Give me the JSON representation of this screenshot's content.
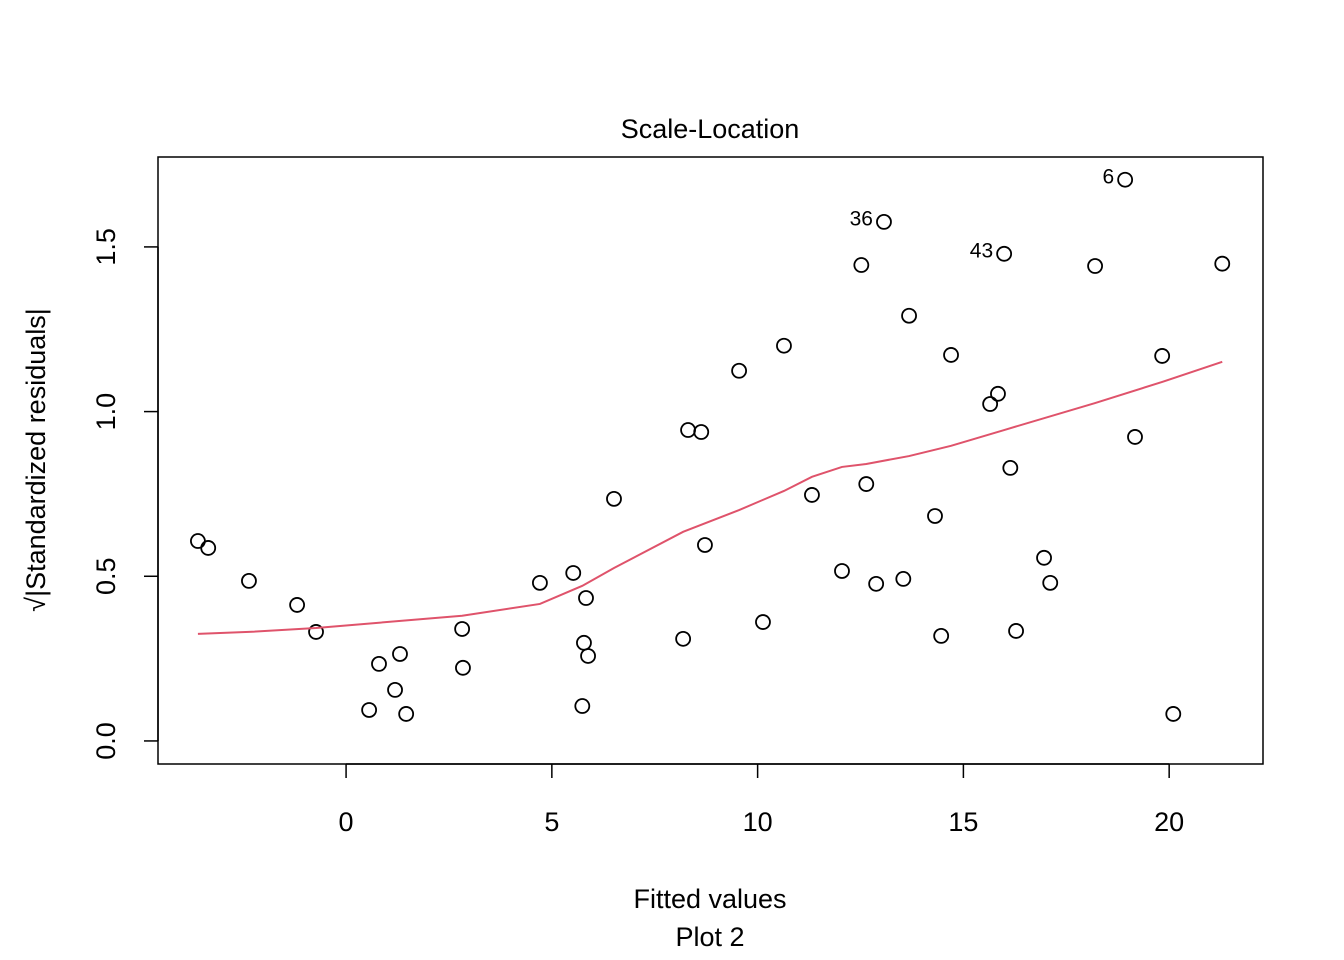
{
  "chart_data": {
    "type": "scatter",
    "title": "Scale-Location",
    "x_label": "Fitted values",
    "y_label": "√|Standardized residuals|",
    "subtitle": "Plot 2",
    "xlim": [
      -4.57,
      22.28
    ],
    "ylim": [
      -0.07,
      1.773
    ],
    "xticks": [
      0,
      5,
      10,
      15,
      20
    ],
    "yticks": [
      {
        "value": 0,
        "label": "0.0"
      },
      0.5,
      {
        "value": 1,
        "label": "1.0"
      },
      1.5
    ],
    "series": [
      {
        "name": "residuals",
        "type": "scatter",
        "color": "#000000",
        "x": [
          -3.6,
          -3.35,
          -2.36,
          -1.19,
          -0.73,
          0.56,
          0.8,
          1.19,
          1.31,
          1.46,
          2.82,
          2.84,
          4.71,
          5.52,
          5.74,
          5.78,
          5.88,
          5.83,
          6.51,
          8.19,
          8.31,
          8.63,
          8.72,
          9.55,
          10.13,
          10.64,
          11.32,
          12.05,
          12.52,
          12.64,
          12.88,
          13.07,
          13.54,
          13.68,
          14.31,
          14.46,
          14.7,
          15.65,
          15.84,
          15.99,
          16.14,
          16.28,
          16.96,
          17.11,
          18.2,
          18.93,
          19.17,
          19.83,
          20.1,
          21.29
        ],
        "values": [
          0.607,
          0.586,
          0.486,
          0.413,
          0.331,
          0.094,
          0.234,
          0.155,
          0.264,
          0.082,
          0.34,
          0.222,
          0.48,
          0.51,
          0.106,
          0.298,
          0.258,
          0.434,
          0.735,
          0.31,
          0.944,
          0.938,
          0.595,
          1.124,
          0.361,
          1.2,
          0.747,
          0.516,
          1.445,
          0.78,
          0.477,
          1.576,
          0.492,
          1.291,
          0.683,
          0.319,
          1.172,
          1.023,
          1.054,
          1.479,
          0.829,
          0.334,
          0.556,
          0.48,
          1.442,
          1.704,
          0.923,
          1.169,
          0.082,
          1.449
        ]
      },
      {
        "name": "smoother",
        "type": "line",
        "color": "#DF536B",
        "x": [
          -3.6,
          -2.36,
          -0.73,
          2.82,
          4.71,
          5.74,
          6.51,
          8.19,
          9.55,
          10.13,
          10.64,
          11.32,
          12.05,
          12.64,
          13.68,
          14.7,
          15.99,
          18.2,
          19.83,
          21.29
        ],
        "values": [
          0.325,
          0.331,
          0.343,
          0.38,
          0.416,
          0.471,
          0.525,
          0.635,
          0.701,
          0.732,
          0.759,
          0.802,
          0.832,
          0.841,
          0.865,
          0.896,
          0.944,
          1.026,
          1.09,
          1.151
        ]
      }
    ],
    "annotations": [
      {
        "text": "6",
        "x": 18.93,
        "y": 1.704
      },
      {
        "text": "36",
        "x": 13.07,
        "y": 1.576
      },
      {
        "text": "43",
        "x": 15.99,
        "y": 1.479
      }
    ]
  }
}
